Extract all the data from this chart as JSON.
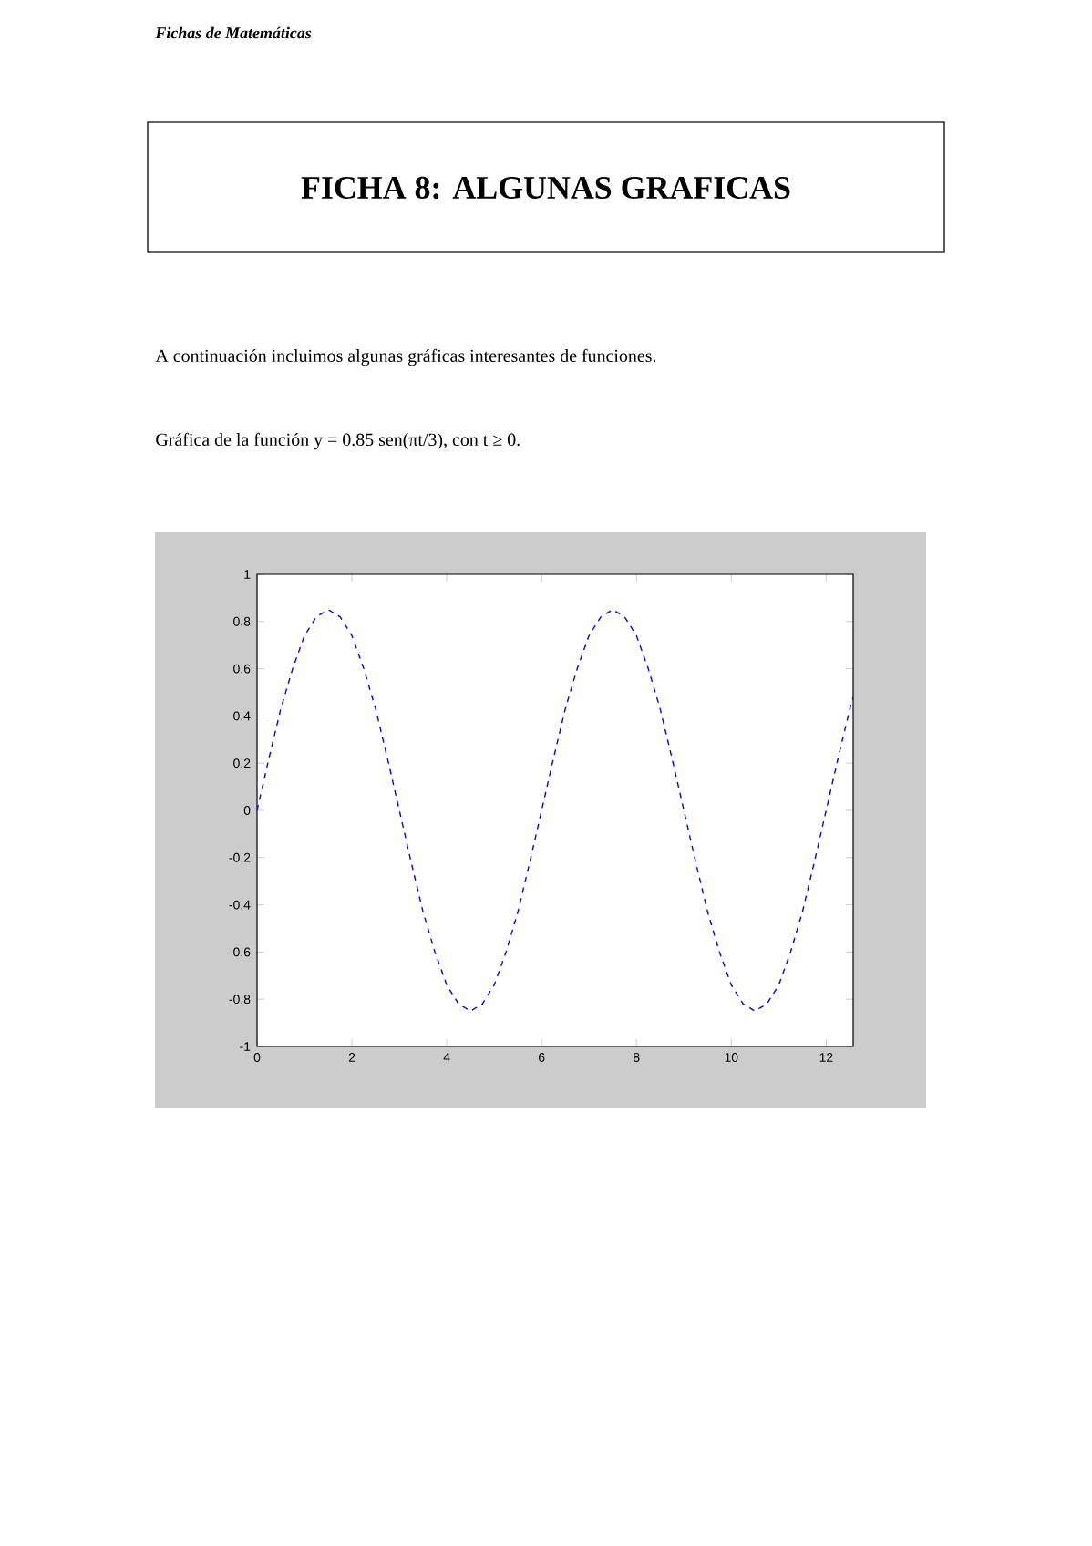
{
  "chart_data": {
    "type": "line",
    "title": "FICHA 8: ALGUNAS GRAFICAS",
    "annotations": [
      "Fichas de Matemáticas",
      "A continuación incluimos algunas gráficas interesantes de funciones.",
      "Gráfica de la función y = 0.85 sen(πt/3), con t ≥ 0."
    ],
    "x": [
      0,
      0.25,
      0.5,
      0.75,
      1,
      1.25,
      1.5,
      1.75,
      2,
      2.25,
      2.5,
      2.75,
      3,
      3.25,
      3.5,
      3.75,
      4,
      4.25,
      4.5,
      4.75,
      5,
      5.25,
      5.5,
      5.75,
      6,
      6.25,
      6.5,
      6.75,
      7,
      7.25,
      7.5,
      7.75,
      8,
      8.25,
      8.5,
      8.75,
      9,
      9.25,
      9.5,
      9.75,
      10,
      10.25,
      10.5,
      10.75,
      11,
      11.25,
      11.5,
      11.75,
      12,
      12.25,
      12.5,
      12.57
    ],
    "series": [
      {
        "color": "#0000ff",
        "values": [
          0,
          0.22,
          0.43,
          0.6,
          0.74,
          0.82,
          0.85,
          0.82,
          0.74,
          0.6,
          0.43,
          0.22,
          0,
          -0.22,
          -0.43,
          -0.6,
          -0.74,
          -0.82,
          -0.85,
          -0.82,
          -0.74,
          -0.6,
          -0.43,
          -0.22,
          0,
          0.22,
          0.43,
          0.6,
          0.74,
          0.82,
          0.85,
          0.82,
          0.74,
          0.6,
          0.43,
          0.22,
          0,
          -0.22,
          -0.43,
          -0.6,
          -0.74,
          -0.82,
          -0.85,
          -0.82,
          -0.74,
          -0.6,
          -0.43,
          -0.22,
          0,
          0.22,
          0.43,
          0.48
        ]
      }
    ],
    "xlim": [
      0,
      12.57
    ],
    "ylim": [
      -1,
      1
    ],
    "xticks": [
      0,
      2,
      4,
      6,
      8,
      10,
      12
    ],
    "yticks": [
      -1,
      -0.8,
      -0.6,
      -0.4,
      -0.2,
      0,
      0.2,
      0.4,
      0.6,
      0.8,
      1
    ],
    "line_style": "dashed",
    "marker": "none",
    "grid": false
  }
}
